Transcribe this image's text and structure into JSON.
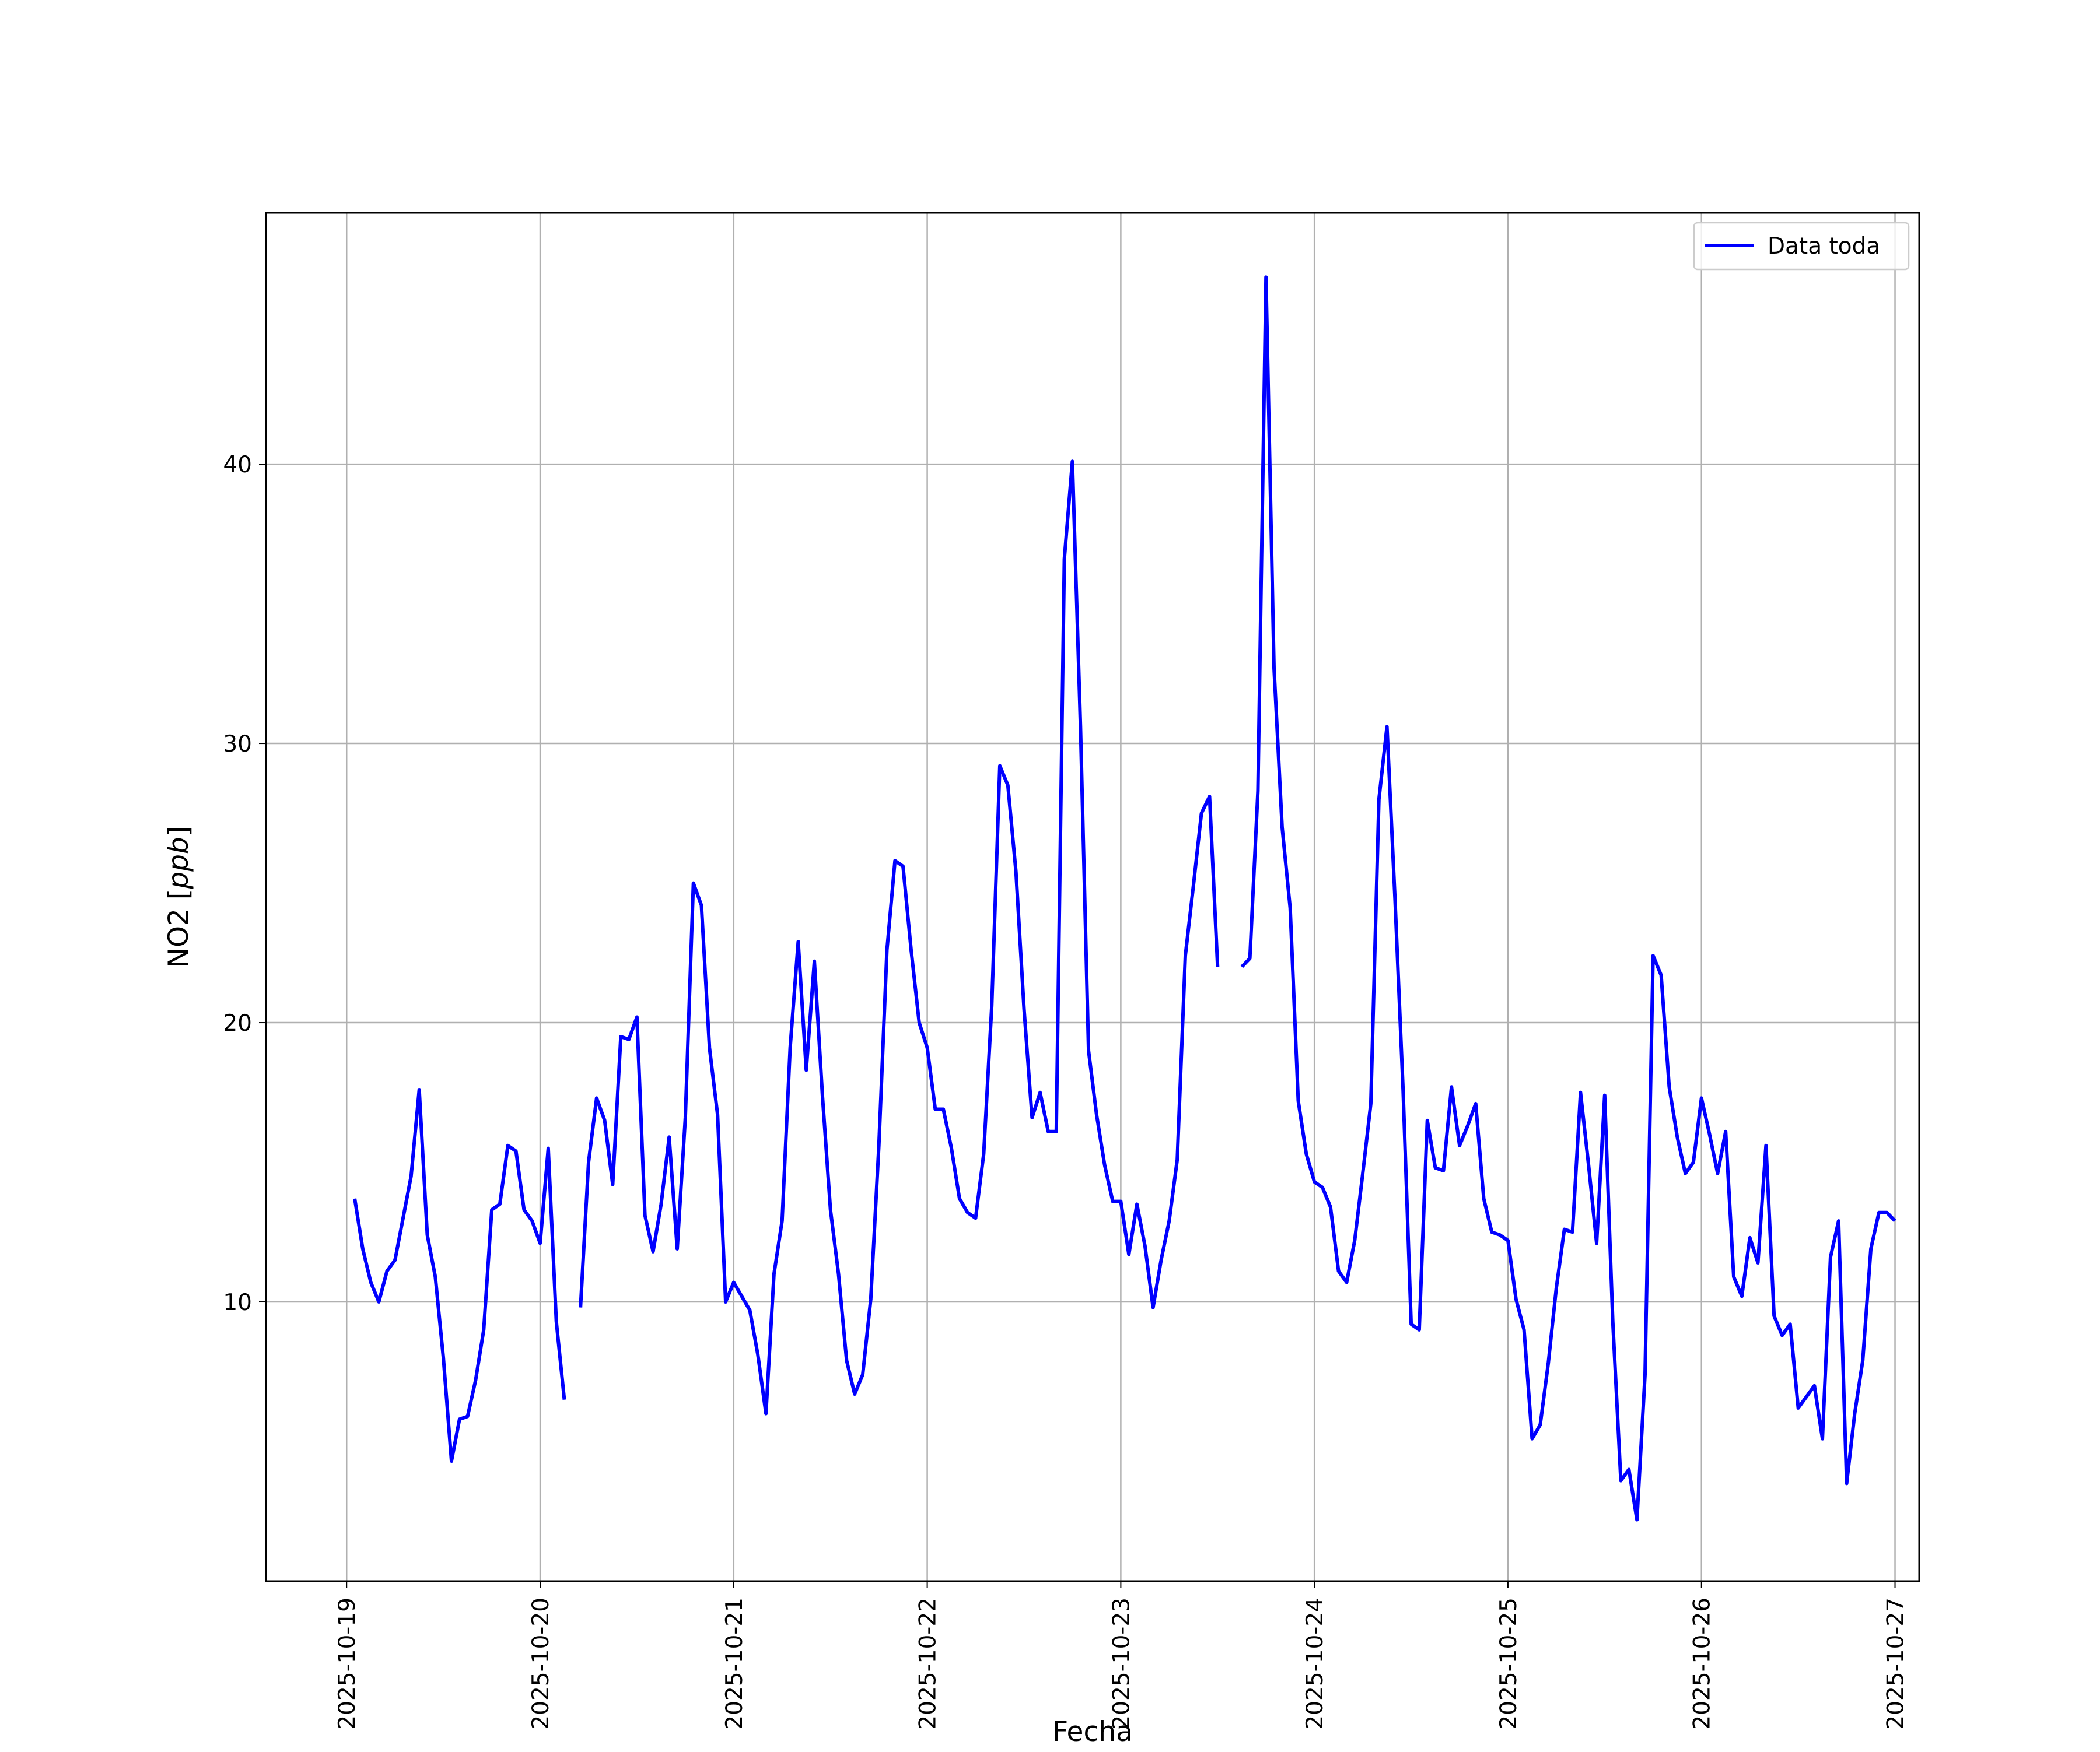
{
  "chart_data": {
    "type": "line",
    "xlabel": "Fecha",
    "ylabel": "NO2 [ppb]",
    "ylabel_plain": "NO2 [",
    "ylabel_italic": "ppb",
    "ylabel_close": "]",
    "xlim": [
      "2025-10-18 14:00",
      "2025-10-27 03:00"
    ],
    "ylim": [
      0,
      49
    ],
    "grid": true,
    "legend": "top-right",
    "x_ticks": [
      "2025-10-19",
      "2025-10-20",
      "2025-10-21",
      "2025-10-22",
      "2025-10-23",
      "2025-10-24",
      "2025-10-25",
      "2025-10-26",
      "2025-10-27"
    ],
    "y_ticks": [
      10,
      20,
      30,
      40
    ],
    "series": [
      {
        "name": "Data toda",
        "color": "#0000ff",
        "points": [
          [
            "2025-10-19 01:00",
            13.7
          ],
          [
            "2025-10-19 02:00",
            11.9
          ],
          [
            "2025-10-19 03:00",
            10.7
          ],
          [
            "2025-10-19 04:00",
            10.0
          ],
          [
            "2025-10-19 05:00",
            11.1
          ],
          [
            "2025-10-19 06:00",
            11.5
          ],
          [
            "2025-10-19 07:00",
            13.0
          ],
          [
            "2025-10-19 08:00",
            14.5
          ],
          [
            "2025-10-19 09:00",
            17.6
          ],
          [
            "2025-10-19 10:00",
            12.4
          ],
          [
            "2025-10-19 11:00",
            10.9
          ],
          [
            "2025-10-19 12:00",
            8.0
          ],
          [
            "2025-10-19 13:00",
            4.3
          ],
          [
            "2025-10-19 14:00",
            5.8
          ],
          [
            "2025-10-19 15:00",
            5.9
          ],
          [
            "2025-10-19 16:00",
            7.2
          ],
          [
            "2025-10-19 17:00",
            9.0
          ],
          [
            "2025-10-19 18:00",
            13.3
          ],
          [
            "2025-10-19 19:00",
            13.5
          ],
          [
            "2025-10-19 20:00",
            15.6
          ],
          [
            "2025-10-19 21:00",
            15.4
          ],
          [
            "2025-10-19 22:00",
            13.3
          ],
          [
            "2025-10-19 23:00",
            12.9
          ],
          [
            "2025-10-20 00:00",
            12.1
          ],
          [
            "2025-10-20 01:00",
            15.5
          ],
          [
            "2025-10-20 02:00",
            9.3
          ],
          [
            "2025-10-20 03:00",
            6.5
          ],
          null,
          [
            "2025-10-20 05:00",
            9.8
          ],
          [
            "2025-10-20 06:00",
            15.0
          ],
          [
            "2025-10-20 07:00",
            17.3
          ],
          [
            "2025-10-20 08:00",
            16.5
          ],
          [
            "2025-10-20 09:00",
            14.2
          ],
          [
            "2025-10-20 10:00",
            19.5
          ],
          [
            "2025-10-20 11:00",
            19.4
          ],
          [
            "2025-10-20 12:00",
            20.2
          ],
          [
            "2025-10-20 13:00",
            13.1
          ],
          [
            "2025-10-20 14:00",
            11.8
          ],
          [
            "2025-10-20 15:00",
            13.5
          ],
          [
            "2025-10-20 16:00",
            15.9
          ],
          [
            "2025-10-20 17:00",
            11.9
          ],
          [
            "2025-10-20 18:00",
            16.6
          ],
          [
            "2025-10-20 19:00",
            25.0
          ],
          [
            "2025-10-20 20:00",
            24.2
          ],
          [
            "2025-10-20 21:00",
            19.1
          ],
          [
            "2025-10-20 22:00",
            16.7
          ],
          [
            "2025-10-20 23:00",
            10.0
          ],
          [
            "2025-10-21 00:00",
            10.7
          ],
          [
            "2025-10-21 01:00",
            10.2
          ],
          [
            "2025-10-21 02:00",
            9.7
          ],
          [
            "2025-10-21 03:00",
            8.1
          ],
          [
            "2025-10-21 04:00",
            6.0
          ],
          [
            "2025-10-21 05:00",
            11.0
          ],
          [
            "2025-10-21 06:00",
            12.9
          ],
          [
            "2025-10-21 07:00",
            19.1
          ],
          [
            "2025-10-21 08:00",
            22.9
          ],
          [
            "2025-10-21 09:00",
            18.3
          ],
          [
            "2025-10-21 10:00",
            22.2
          ],
          [
            "2025-10-21 11:00",
            17.4
          ],
          [
            "2025-10-21 12:00",
            13.3
          ],
          [
            "2025-10-21 13:00",
            11.0
          ],
          [
            "2025-10-21 14:00",
            7.9
          ],
          [
            "2025-10-21 15:00",
            6.7
          ],
          [
            "2025-10-21 16:00",
            7.4
          ],
          [
            "2025-10-21 17:00",
            10.1
          ],
          [
            "2025-10-21 18:00",
            15.6
          ],
          [
            "2025-10-21 19:00",
            22.6
          ],
          [
            "2025-10-21 20:00",
            25.8
          ],
          [
            "2025-10-21 21:00",
            25.6
          ],
          [
            "2025-10-21 22:00",
            22.6
          ],
          [
            "2025-10-21 23:00",
            20.0
          ],
          [
            "2025-10-22 00:00",
            19.1
          ],
          [
            "2025-10-22 01:00",
            16.9
          ],
          [
            "2025-10-22 02:00",
            16.9
          ],
          [
            "2025-10-22 03:00",
            15.5
          ],
          [
            "2025-10-22 04:00",
            13.7
          ],
          [
            "2025-10-22 05:00",
            13.2
          ],
          [
            "2025-10-22 06:00",
            13.0
          ],
          [
            "2025-10-22 07:00",
            15.3
          ],
          [
            "2025-10-22 08:00",
            20.6
          ],
          [
            "2025-10-22 09:00",
            29.2
          ],
          [
            "2025-10-22 10:00",
            28.5
          ],
          [
            "2025-10-22 11:00",
            25.4
          ],
          [
            "2025-10-22 12:00",
            20.5
          ],
          [
            "2025-10-22 13:00",
            16.6
          ],
          [
            "2025-10-22 14:00",
            17.5
          ],
          [
            "2025-10-22 15:00",
            16.1
          ],
          [
            "2025-10-22 16:00",
            16.1
          ],
          [
            "2025-10-22 17:00",
            36.6
          ],
          [
            "2025-10-22 18:00",
            40.1
          ],
          [
            "2025-10-22 19:00",
            30.6
          ],
          [
            "2025-10-22 20:00",
            19.0
          ],
          [
            "2025-10-22 21:00",
            16.7
          ],
          [
            "2025-10-22 22:00",
            14.9
          ],
          [
            "2025-10-22 23:00",
            13.6
          ],
          [
            "2025-10-23 00:00",
            13.6
          ],
          [
            "2025-10-23 01:00",
            11.7
          ],
          [
            "2025-10-23 02:00",
            13.5
          ],
          [
            "2025-10-23 03:00",
            12.0
          ],
          [
            "2025-10-23 04:00",
            9.8
          ],
          [
            "2025-10-23 05:00",
            11.5
          ],
          [
            "2025-10-23 06:00",
            12.9
          ],
          [
            "2025-10-23 07:00",
            15.1
          ],
          [
            "2025-10-23 08:00",
            22.4
          ],
          [
            "2025-10-23 09:00",
            24.9
          ],
          [
            "2025-10-23 10:00",
            27.5
          ],
          [
            "2025-10-23 11:00",
            28.1
          ],
          [
            "2025-10-23 12:00",
            22.0
          ],
          null,
          [
            "2025-10-23 15:00",
            22.0
          ],
          [
            "2025-10-23 16:00",
            22.3
          ],
          [
            "2025-10-23 17:00",
            28.3
          ],
          [
            "2025-10-23 18:00",
            46.7
          ],
          [
            "2025-10-23 19:00",
            32.7
          ],
          [
            "2025-10-23 20:00",
            27.0
          ],
          [
            "2025-10-23 21:00",
            24.1
          ],
          [
            "2025-10-23 22:00",
            17.2
          ],
          [
            "2025-10-23 23:00",
            15.3
          ],
          [
            "2025-10-24 00:00",
            14.3
          ],
          [
            "2025-10-24 01:00",
            14.1
          ],
          [
            "2025-10-24 02:00",
            13.4
          ],
          [
            "2025-10-24 03:00",
            11.1
          ],
          [
            "2025-10-24 04:00",
            10.7
          ],
          [
            "2025-10-24 05:00",
            12.2
          ],
          [
            "2025-10-24 06:00",
            14.6
          ],
          [
            "2025-10-24 07:00",
            17.1
          ],
          [
            "2025-10-24 08:00",
            28.0
          ],
          [
            "2025-10-24 09:00",
            30.6
          ],
          [
            "2025-10-24 10:00",
            24.4
          ],
          [
            "2025-10-24 11:00",
            17.6
          ],
          [
            "2025-10-24 12:00",
            9.2
          ],
          [
            "2025-10-24 13:00",
            9.0
          ],
          [
            "2025-10-24 14:00",
            16.5
          ],
          [
            "2025-10-24 15:00",
            14.8
          ],
          [
            "2025-10-24 16:00",
            14.7
          ],
          [
            "2025-10-24 17:00",
            17.7
          ],
          [
            "2025-10-24 18:00",
            15.6
          ],
          [
            "2025-10-24 19:00",
            16.3
          ],
          [
            "2025-10-24 20:00",
            17.1
          ],
          [
            "2025-10-24 21:00",
            13.7
          ],
          [
            "2025-10-24 22:00",
            12.5
          ],
          [
            "2025-10-24 23:00",
            12.4
          ],
          [
            "2025-10-25 00:00",
            12.2
          ],
          [
            "2025-10-25 01:00",
            10.1
          ],
          [
            "2025-10-25 02:00",
            9.0
          ],
          [
            "2025-10-25 03:00",
            5.1
          ],
          [
            "2025-10-25 04:00",
            5.6
          ],
          [
            "2025-10-25 05:00",
            7.8
          ],
          [
            "2025-10-25 06:00",
            10.5
          ],
          [
            "2025-10-25 07:00",
            12.6
          ],
          [
            "2025-10-25 08:00",
            12.5
          ],
          [
            "2025-10-25 09:00",
            17.5
          ],
          [
            "2025-10-25 10:00",
            14.9
          ],
          [
            "2025-10-25 11:00",
            12.1
          ],
          [
            "2025-10-25 12:00",
            17.4
          ],
          [
            "2025-10-25 13:00",
            9.3
          ],
          [
            "2025-10-25 14:00",
            3.6
          ],
          [
            "2025-10-25 15:00",
            4.0
          ],
          [
            "2025-10-25 16:00",
            2.2
          ],
          [
            "2025-10-25 17:00",
            7.4
          ],
          [
            "2025-10-25 18:00",
            22.4
          ],
          [
            "2025-10-25 19:00",
            21.7
          ],
          [
            "2025-10-25 20:00",
            17.7
          ],
          [
            "2025-10-25 21:00",
            15.9
          ],
          [
            "2025-10-25 22:00",
            14.6
          ],
          [
            "2025-10-25 23:00",
            15.0
          ],
          [
            "2025-10-26 00:00",
            17.3
          ],
          [
            "2025-10-26 01:00",
            16.0
          ],
          [
            "2025-10-26 02:00",
            14.6
          ],
          [
            "2025-10-26 03:00",
            16.1
          ],
          [
            "2025-10-26 04:00",
            10.9
          ],
          [
            "2025-10-26 05:00",
            10.2
          ],
          [
            "2025-10-26 06:00",
            12.3
          ],
          [
            "2025-10-26 07:00",
            11.4
          ],
          [
            "2025-10-26 08:00",
            15.6
          ],
          [
            "2025-10-26 09:00",
            9.5
          ],
          [
            "2025-10-26 10:00",
            8.8
          ],
          [
            "2025-10-26 11:00",
            9.2
          ],
          [
            "2025-10-26 12:00",
            6.2
          ],
          [
            "2025-10-26 13:00",
            6.6
          ],
          [
            "2025-10-26 14:00",
            7.0
          ],
          [
            "2025-10-26 15:00",
            5.1
          ],
          [
            "2025-10-26 16:00",
            11.6
          ],
          [
            "2025-10-26 17:00",
            12.9
          ],
          [
            "2025-10-26 18:00",
            3.5
          ],
          [
            "2025-10-26 19:00",
            6.0
          ],
          [
            "2025-10-26 20:00",
            7.9
          ],
          [
            "2025-10-26 21:00",
            11.9
          ],
          [
            "2025-10-26 22:00",
            13.2
          ],
          [
            "2025-10-26 23:00",
            13.2
          ],
          [
            "2025-10-27 00:00",
            12.9
          ]
        ]
      }
    ]
  }
}
